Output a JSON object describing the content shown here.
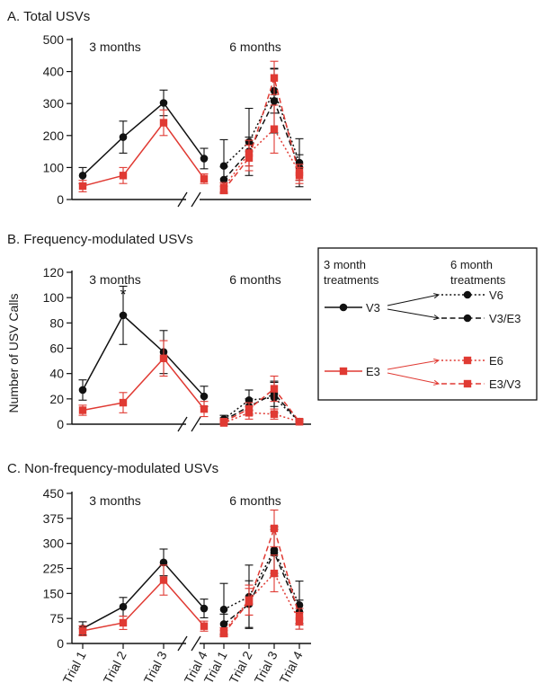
{
  "figure": {
    "ylabel": "Number of USV Calls",
    "x_categories": [
      "Trial 1",
      "Trial 2",
      "Trial 3",
      "Trial 4"
    ]
  },
  "colors": {
    "black": "#111111",
    "red": "#e03a33"
  },
  "legend": {
    "header_left": [
      "3 month",
      "treatments"
    ],
    "header_right": [
      "6 month",
      "treatments"
    ],
    "groups": [
      {
        "label": "V3",
        "color": "#111111",
        "marker": "circle",
        "items": [
          {
            "label": "V6",
            "dash": "dotted"
          },
          {
            "label": "V3/E3",
            "dash": "dashed"
          }
        ]
      },
      {
        "label": "E3",
        "color": "#e03a33",
        "marker": "square",
        "items": [
          {
            "label": "E6",
            "dash": "dotted"
          },
          {
            "label": "E3/V3",
            "dash": "dashed"
          }
        ]
      }
    ]
  },
  "chart_data": [
    {
      "type": "line",
      "title": "A. Total USVs",
      "ylim": [
        0,
        500
      ],
      "yticks": [
        0,
        100,
        200,
        300,
        400,
        500
      ],
      "segment_labels": [
        "3 months",
        "6 months"
      ],
      "show_xticks": false,
      "annotations": [],
      "series": [
        {
          "name": "V3",
          "segment": "3 months",
          "color": "#111111",
          "marker": "circle",
          "dash": "solid",
          "values": [
            75,
            195,
            302,
            128
          ],
          "errors": [
            25,
            50,
            40,
            32
          ]
        },
        {
          "name": "E3",
          "segment": "3 months",
          "color": "#e03a33",
          "marker": "square",
          "dash": "solid",
          "values": [
            42,
            75,
            240,
            65
          ],
          "errors": [
            18,
            25,
            40,
            15
          ]
        },
        {
          "name": "V6",
          "segment": "6 months",
          "color": "#111111",
          "marker": "circle",
          "dash": "dotted",
          "values": [
            105,
            180,
            340,
            115
          ],
          "errors": [
            82,
            105,
            70,
            75
          ]
        },
        {
          "name": "V3/E3",
          "segment": "6 months",
          "color": "#111111",
          "marker": "circle",
          "dash": "dashed",
          "values": [
            62,
            150,
            308,
            100
          ],
          "errors": [
            40,
            45,
            100,
            40
          ]
        },
        {
          "name": "E6",
          "segment": "6 months",
          "color": "#e03a33",
          "marker": "square",
          "dash": "dotted",
          "values": [
            38,
            145,
            220,
            85
          ],
          "errors": [
            15,
            40,
            75,
            25
          ]
        },
        {
          "name": "E3/V3",
          "segment": "6 months",
          "color": "#e03a33",
          "marker": "square",
          "dash": "dashed",
          "values": [
            30,
            130,
            380,
            75
          ],
          "errors": [
            12,
            40,
            52,
            25
          ]
        }
      ]
    },
    {
      "type": "line",
      "title": "B. Frequency-modulated USVs",
      "ylim": [
        0,
        120
      ],
      "yticks": [
        0,
        20,
        40,
        60,
        80,
        100,
        120
      ],
      "segment_labels": [
        "3 months",
        "6 months"
      ],
      "show_xticks": false,
      "annotations": [
        {
          "text": "*",
          "segment": "3 months",
          "trial": 2
        }
      ],
      "series": [
        {
          "name": "V3",
          "segment": "3 months",
          "color": "#111111",
          "marker": "circle",
          "dash": "solid",
          "values": [
            27,
            86,
            57,
            22
          ],
          "errors": [
            8,
            23,
            17,
            8
          ]
        },
        {
          "name": "E3",
          "segment": "3 months",
          "color": "#e03a33",
          "marker": "square",
          "dash": "solid",
          "values": [
            11,
            17,
            52,
            12
          ],
          "errors": [
            4,
            8,
            14,
            6
          ]
        },
        {
          "name": "V6",
          "segment": "6 months",
          "color": "#111111",
          "marker": "circle",
          "dash": "dotted",
          "values": [
            4,
            19,
            21,
            2
          ],
          "errors": [
            3,
            8,
            12,
            2
          ]
        },
        {
          "name": "V3/E3",
          "segment": "6 months",
          "color": "#111111",
          "marker": "circle",
          "dash": "dashed",
          "values": [
            3,
            14,
            24,
            2
          ],
          "errors": [
            2,
            6,
            10,
            2
          ]
        },
        {
          "name": "E6",
          "segment": "6 months",
          "color": "#e03a33",
          "marker": "square",
          "dash": "dotted",
          "values": [
            1,
            9,
            8,
            2
          ],
          "errors": [
            1,
            5,
            4,
            1
          ]
        },
        {
          "name": "E3/V3",
          "segment": "6 months",
          "color": "#e03a33",
          "marker": "square",
          "dash": "dashed",
          "values": [
            2,
            12,
            28,
            2
          ],
          "errors": [
            1,
            5,
            10,
            1
          ]
        }
      ]
    },
    {
      "type": "line",
      "title": "C. Non-frequency-modulated USVs",
      "ylim": [
        0,
        450
      ],
      "yticks": [
        0,
        75,
        150,
        225,
        300,
        375,
        450
      ],
      "segment_labels": [
        "3 months",
        "6 months"
      ],
      "show_xticks": true,
      "annotations": [],
      "series": [
        {
          "name": "V3",
          "segment": "3 months",
          "color": "#111111",
          "marker": "circle",
          "dash": "solid",
          "values": [
            45,
            110,
            243,
            105
          ],
          "errors": [
            20,
            28,
            40,
            28
          ]
        },
        {
          "name": "E3",
          "segment": "3 months",
          "color": "#e03a33",
          "marker": "square",
          "dash": "solid",
          "values": [
            38,
            62,
            190,
            52
          ],
          "errors": [
            15,
            20,
            45,
            15
          ]
        },
        {
          "name": "V6",
          "segment": "6 months",
          "color": "#111111",
          "marker": "circle",
          "dash": "dotted",
          "values": [
            102,
            140,
            280,
            115
          ],
          "errors": [
            78,
            95,
            70,
            72
          ]
        },
        {
          "name": "V3/E3",
          "segment": "6 months",
          "color": "#111111",
          "marker": "circle",
          "dash": "dashed",
          "values": [
            58,
            118,
            272,
            95
          ],
          "errors": [
            30,
            70,
            70,
            35
          ]
        },
        {
          "name": "E6",
          "segment": "6 months",
          "color": "#e03a33",
          "marker": "square",
          "dash": "dotted",
          "values": [
            35,
            130,
            210,
            68
          ],
          "errors": [
            12,
            45,
            55,
            25
          ]
        },
        {
          "name": "E3/V3",
          "segment": "6 months",
          "color": "#e03a33",
          "marker": "square",
          "dash": "dashed",
          "values": [
            30,
            125,
            345,
            80
          ],
          "errors": [
            10,
            40,
            55,
            25
          ]
        }
      ]
    }
  ]
}
